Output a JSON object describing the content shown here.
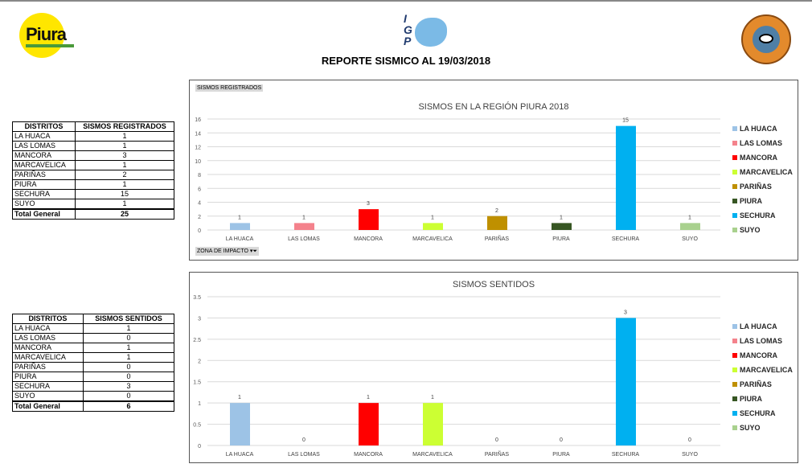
{
  "header": {
    "title": "REPORTE SISMICO AL 19/03/2018",
    "logo_left": "Piura REGIÓN",
    "logo_center": "IGP",
    "logo_right": "COER"
  },
  "table1": {
    "headers": [
      "DISTRITOS",
      "SISMOS REGISTRADOS"
    ],
    "rows": [
      [
        "LA HUACA",
        "1"
      ],
      [
        "LAS LOMAS",
        "1"
      ],
      [
        "MANCORA",
        "3"
      ],
      [
        "MARCAVELICA",
        "1"
      ],
      [
        "PARIÑAS",
        "2"
      ],
      [
        "PIURA",
        "1"
      ],
      [
        "SECHURA",
        "15"
      ],
      [
        "SUYO",
        "1"
      ]
    ],
    "total": [
      "Total General",
      "25"
    ]
  },
  "table2": {
    "headers": [
      "DISTRITOS",
      "SISMOS SENTIDOS"
    ],
    "rows": [
      [
        "LA HUACA",
        "1"
      ],
      [
        "LAS LOMAS",
        "0"
      ],
      [
        "MANCORA",
        "1"
      ],
      [
        "MARCAVELICA",
        "1"
      ],
      [
        "PARIÑAS",
        "0"
      ],
      [
        "PIURA",
        "0"
      ],
      [
        "SECHURA",
        "3"
      ],
      [
        "SUYO",
        "0"
      ]
    ],
    "total": [
      "Total General",
      "6"
    ]
  },
  "chart_tags": {
    "field": "SISMOS REGISTRADOS",
    "filter": "ZONA DE IMPACTO"
  },
  "colors": [
    "#9dc3e6",
    "#f4828c",
    "#ff0000",
    "#ccff33",
    "#bf9000",
    "#375623",
    "#00b0f0",
    "#a9d18e"
  ],
  "chart_data": [
    {
      "type": "bar",
      "title": "SISMOS EN LA REGIÓN PIURA 2018",
      "categories": [
        "LA HUACA",
        "LAS LOMAS",
        "MANCORA",
        "MARCAVELICA",
        "PARIÑAS",
        "PIURA",
        "SECHURA",
        "SUYO"
      ],
      "values": [
        1,
        1,
        3,
        1,
        2,
        1,
        15,
        1
      ],
      "ylim": [
        0,
        16
      ],
      "yticks": [
        "0",
        "2",
        "4",
        "6",
        "8",
        "10",
        "12",
        "14",
        "16"
      ],
      "legend": "right",
      "grid": true
    },
    {
      "type": "bar",
      "title": "SISMOS SENTIDOS",
      "categories": [
        "LA HUACA",
        "LAS LOMAS",
        "MANCORA",
        "MARCAVELICA",
        "PARIÑAS",
        "PIURA",
        "SECHURA",
        "SUYO"
      ],
      "values": [
        1,
        0,
        1,
        1,
        0,
        0,
        3,
        0
      ],
      "ylim": [
        0,
        3.5
      ],
      "yticks": [
        "0",
        "0.5",
        "1",
        "1.5",
        "2",
        "2.5",
        "3",
        "3.5"
      ],
      "legend": "right",
      "grid": true
    }
  ]
}
